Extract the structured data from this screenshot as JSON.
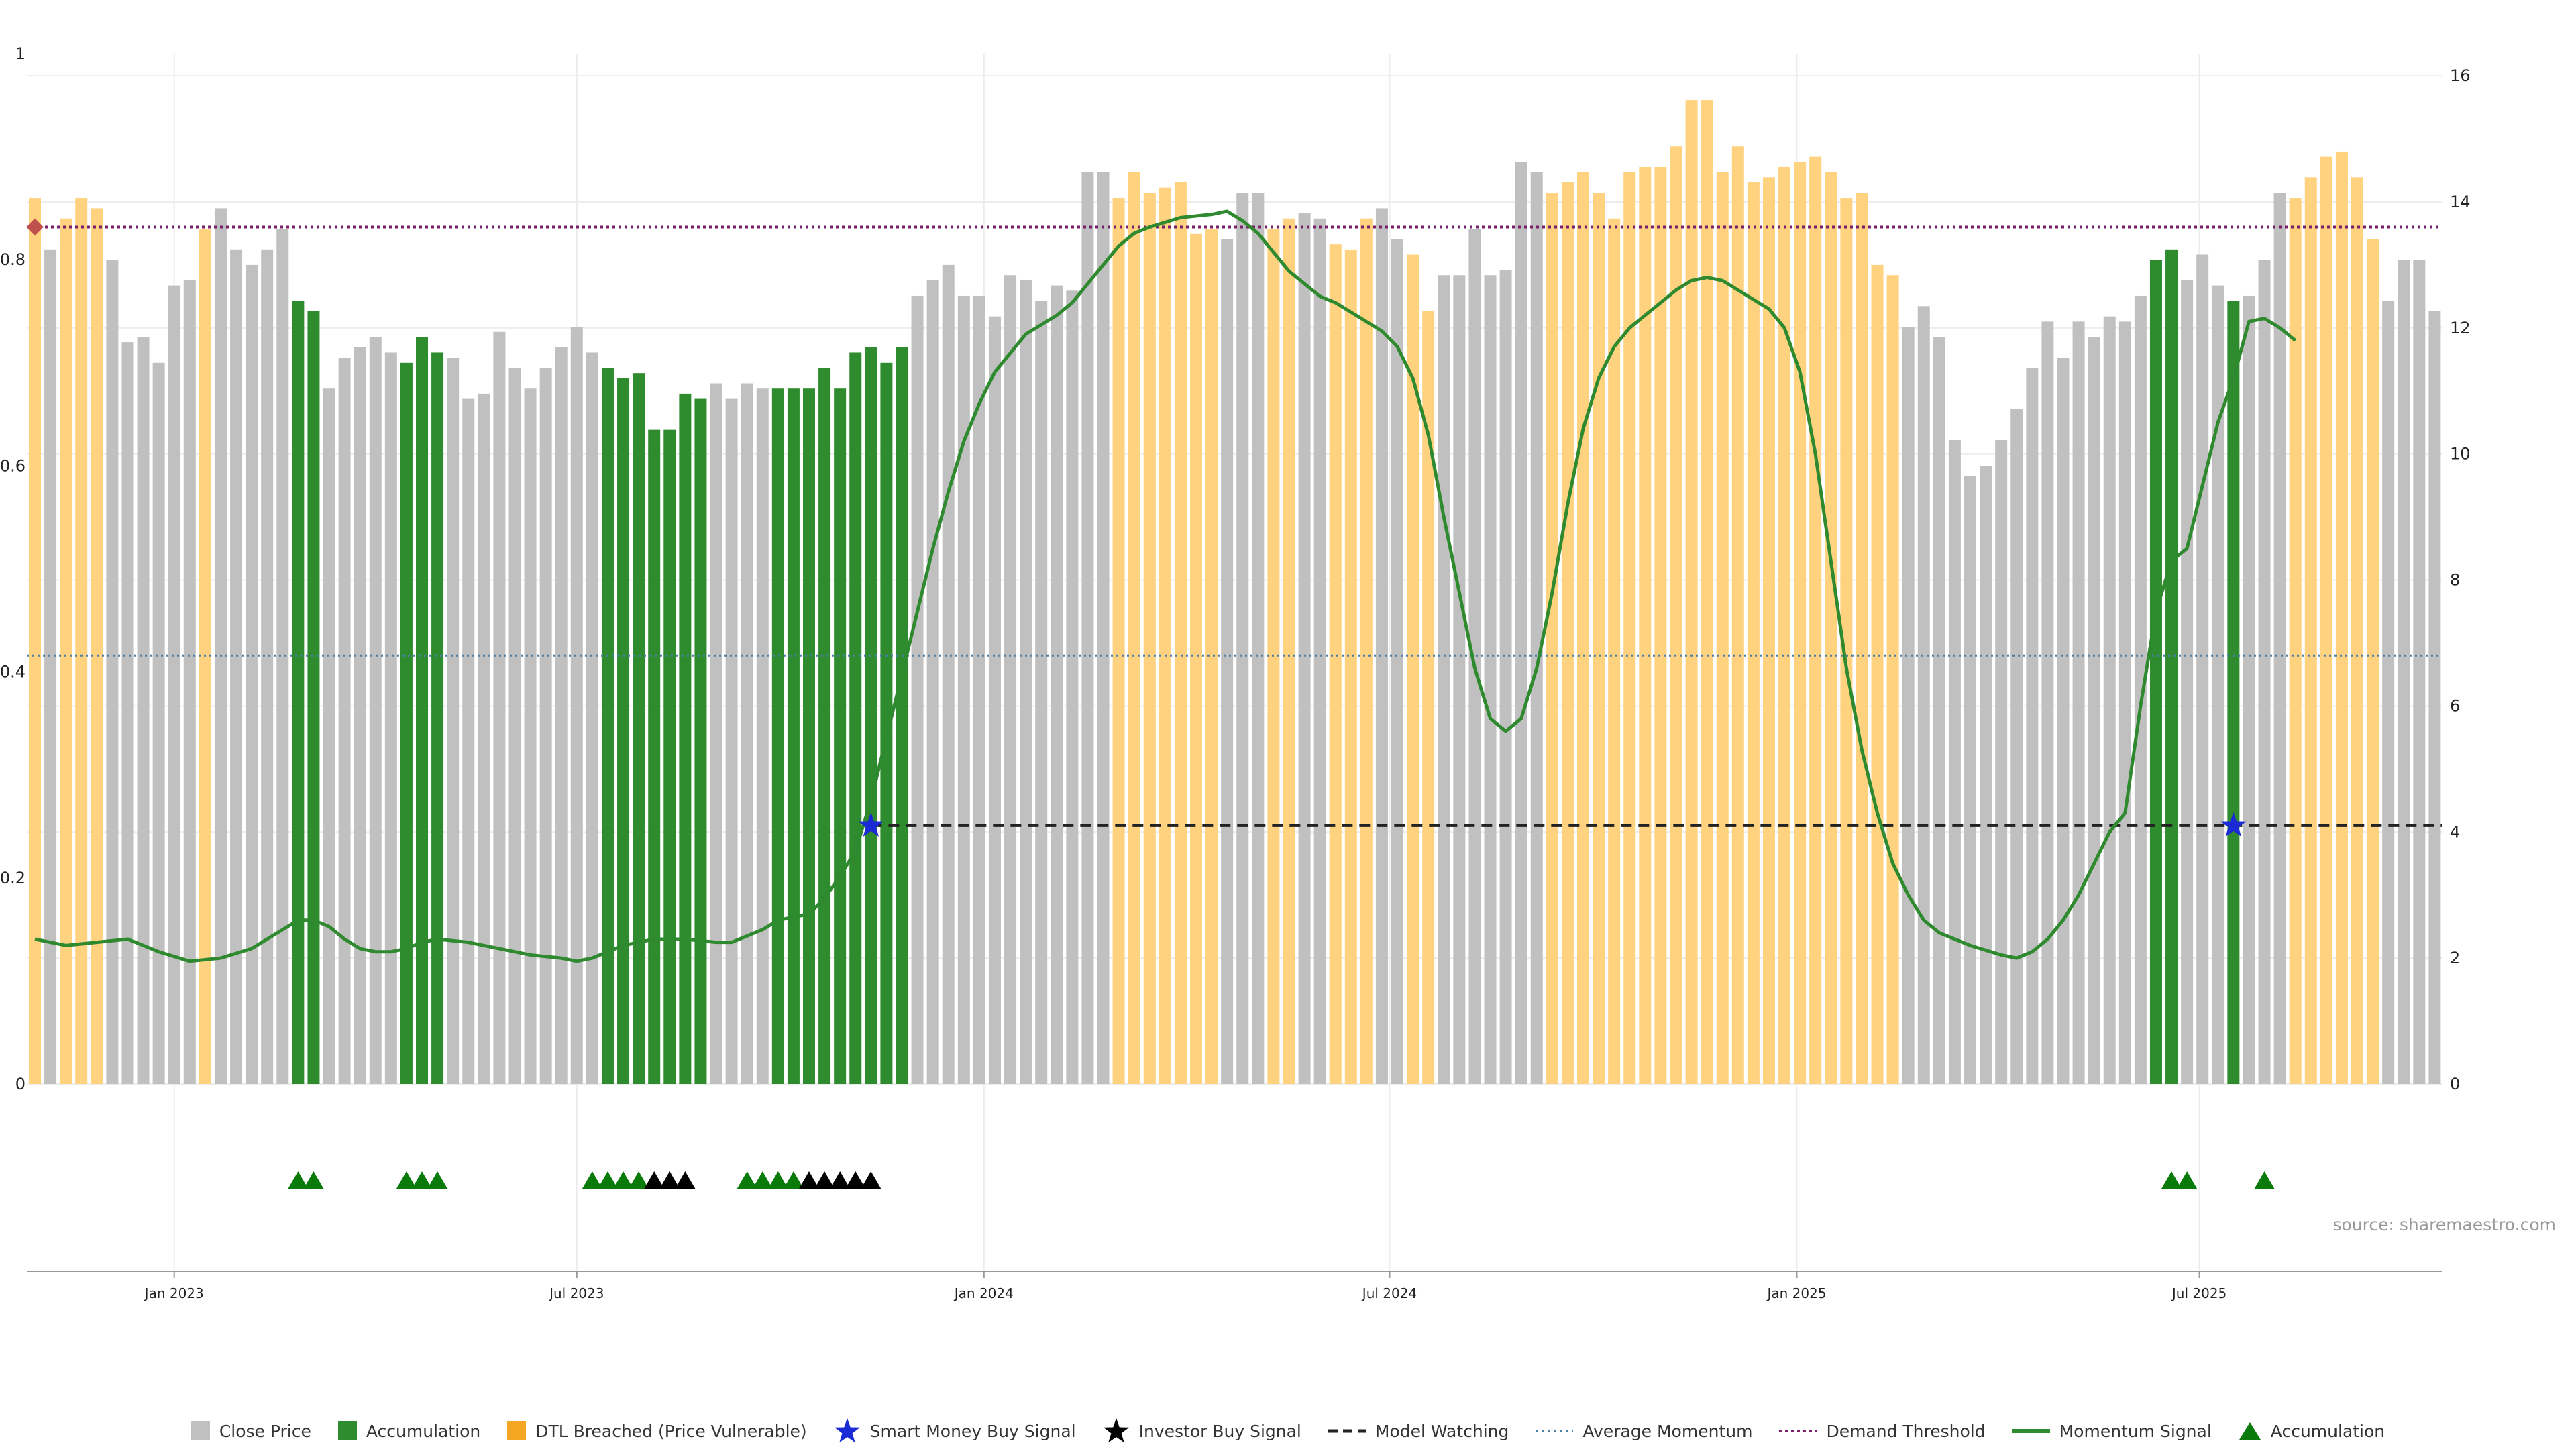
{
  "source_label": "source: sharemaestro.com",
  "colors": {
    "close": "#c0c0c0",
    "accumulation": "#2e8b2e",
    "dtl": "#ffd27f",
    "momentum": "#2f8a2f",
    "momentum_peak": "#0a7d0a",
    "avg_momentum": "#4a7fa8",
    "demand": "#7a1f6a",
    "model_watch": "#222222",
    "smart_money": "#1a2bd6",
    "investor": "#000000",
    "acc_marker": "#0a7a0a"
  },
  "legend": [
    {
      "label": "Close Price",
      "icon": "gray-square"
    },
    {
      "label": "Accumulation",
      "icon": "green-square"
    },
    {
      "label": "DTL Breached (Price Vulnerable)",
      "icon": "orange-square"
    },
    {
      "label": "Smart Money Buy Signal",
      "icon": "blue-star"
    },
    {
      "label": "Investor Buy Signal",
      "icon": "black-star"
    },
    {
      "label": "Model Watching",
      "icon": "dashed-line"
    },
    {
      "label": "Average Momentum",
      "icon": "dotted-blue-line"
    },
    {
      "label": "Demand Threshold",
      "icon": "dotted-purple-line"
    },
    {
      "label": "Momentum Signal",
      "icon": "green-line"
    },
    {
      "label": "Accumulation",
      "icon": "green-triangle"
    }
  ],
  "chart_data": {
    "type": "bar",
    "x_ticks": [
      "Jan 2023",
      "Jul 2023",
      "Jan 2024",
      "Jul 2024",
      "Jan 2025",
      "Jul 2025"
    ],
    "x_tick_positions": [
      9.0,
      35.0,
      61.3,
      87.5,
      113.8,
      139.8
    ],
    "y_left_ticks": [
      "0",
      "0.2",
      "0.4",
      "0.6",
      "0.8",
      "1"
    ],
    "y_left_range": [
      0,
      1
    ],
    "y_right_ticks": [
      "0",
      "2",
      "4",
      "6",
      "8",
      "10",
      "12",
      "14",
      "16"
    ],
    "y_right_range": [
      0,
      16
    ],
    "bars": {
      "close_values": [
        0.86,
        0.81,
        0.84,
        0.86,
        0.85,
        0.8,
        0.72,
        0.725,
        0.7,
        0.775,
        0.78,
        0.83,
        0.85,
        0.81,
        0.795,
        0.81,
        0.83,
        0.76,
        0.75,
        0.675,
        0.705,
        0.715,
        0.725,
        0.71,
        0.7,
        0.725,
        0.71,
        0.705,
        0.665,
        0.67,
        0.73,
        0.695,
        0.675,
        0.695,
        0.715,
        0.735,
        0.71,
        0.695,
        0.685,
        0.69,
        0.635,
        0.635,
        0.67,
        0.665,
        0.68,
        0.665,
        0.68,
        0.675,
        0.675,
        0.675,
        0.675,
        0.695,
        0.675,
        0.71,
        0.715,
        0.7,
        0.715,
        0.765,
        0.78,
        0.795,
        0.765,
        0.765,
        0.745,
        0.785,
        0.78,
        0.76,
        0.775,
        0.77,
        0.885,
        0.885,
        0.86,
        0.885,
        0.865,
        0.87,
        0.875,
        0.825,
        0.83,
        0.82,
        0.865,
        0.865,
        0.83,
        0.84,
        0.845,
        0.84,
        0.815,
        0.81,
        0.84,
        0.85,
        0.82,
        0.805,
        0.75,
        0.785,
        0.785,
        0.83,
        0.785,
        0.79,
        0.895,
        0.885,
        0.865,
        0.875,
        0.885,
        0.865,
        0.84,
        0.885,
        0.89,
        0.89,
        0.91,
        0.955,
        0.955,
        0.885,
        0.91,
        0.875,
        0.88,
        0.89,
        0.895,
        0.9,
        0.885,
        0.86,
        0.865,
        0.795,
        0.785,
        0.735,
        0.755,
        0.725,
        0.625,
        0.59,
        0.6,
        0.625,
        0.655,
        0.695,
        0.74,
        0.705,
        0.74,
        0.725,
        0.745,
        0.74,
        0.765,
        0.8,
        0.81,
        0.78,
        0.805,
        0.775,
        0.76,
        0.765,
        0.8,
        0.865,
        0.86,
        0.88,
        0.9,
        0.905,
        0.88,
        0.82,
        0.76,
        0.8,
        0.8,
        0.75
      ],
      "category_codes": "DGDDDGGGGGGDGGGGGAAGGGGGAAAGGGGGGGGGGAAAAAAAGGGGAAAAAAAAAGGGGGGGGGGGGGDDDDDDDGGGDDGGDDDGGDDGGGGGGGDDDDDDDDDDDDDDDDDDDDDDDGGGGGGGGGGGGGGGGAAGGGAGGGDDDDDDGGGGG"
    },
    "momentum_signal": [
      [
        0,
        2.3
      ],
      [
        2,
        2.2
      ],
      [
        4,
        2.25
      ],
      [
        6,
        2.3
      ],
      [
        8,
        2.1
      ],
      [
        10,
        1.95
      ],
      [
        12,
        2.0
      ],
      [
        14,
        2.15
      ],
      [
        16,
        2.45
      ],
      [
        17,
        2.6
      ],
      [
        18,
        2.6
      ],
      [
        19,
        2.5
      ],
      [
        20,
        2.3
      ],
      [
        21,
        2.15
      ],
      [
        22,
        2.1
      ],
      [
        23,
        2.1
      ],
      [
        24,
        2.15
      ],
      [
        25,
        2.25
      ],
      [
        26,
        2.3
      ],
      [
        28,
        2.25
      ],
      [
        30,
        2.15
      ],
      [
        32,
        2.05
      ],
      [
        34,
        2.0
      ],
      [
        35,
        1.95
      ],
      [
        36,
        2.0
      ],
      [
        38,
        2.2
      ],
      [
        40,
        2.3
      ],
      [
        42,
        2.3
      ],
      [
        44,
        2.25
      ],
      [
        45,
        2.25
      ],
      [
        47,
        2.45
      ],
      [
        48,
        2.6
      ],
      [
        50,
        2.7
      ],
      [
        51,
        2.95
      ],
      [
        52,
        3.3
      ],
      [
        53,
        3.7
      ],
      [
        54,
        4.5
      ],
      [
        55,
        5.5
      ],
      [
        56,
        6.5
      ],
      [
        57,
        7.5
      ],
      [
        58,
        8.5
      ],
      [
        59,
        9.4
      ],
      [
        60,
        10.2
      ],
      [
        61,
        10.8
      ],
      [
        62,
        11.3
      ],
      [
        63,
        11.6
      ],
      [
        64,
        11.9
      ],
      [
        66,
        12.2
      ],
      [
        67,
        12.4
      ],
      [
        68,
        12.7
      ],
      [
        69,
        13.0
      ],
      [
        70,
        13.3
      ],
      [
        71,
        13.5
      ],
      [
        72,
        13.6
      ],
      [
        74,
        13.75
      ],
      [
        76,
        13.8
      ],
      [
        77,
        13.85
      ],
      [
        78,
        13.7
      ],
      [
        79,
        13.5
      ],
      [
        80,
        13.2
      ],
      [
        81,
        12.9
      ],
      [
        82,
        12.7
      ],
      [
        83,
        12.5
      ],
      [
        84,
        12.4
      ],
      [
        85,
        12.25
      ],
      [
        86,
        12.1
      ],
      [
        87,
        11.95
      ],
      [
        88,
        11.7
      ],
      [
        89,
        11.2
      ],
      [
        90,
        10.3
      ],
      [
        91,
        9.0
      ],
      [
        92,
        7.8
      ],
      [
        93,
        6.6
      ],
      [
        94,
        5.8
      ],
      [
        95,
        5.6
      ],
      [
        96,
        5.8
      ],
      [
        97,
        6.6
      ],
      [
        98,
        7.8
      ],
      [
        99,
        9.2
      ],
      [
        100,
        10.4
      ],
      [
        101,
        11.2
      ],
      [
        102,
        11.7
      ],
      [
        103,
        12.0
      ],
      [
        104,
        12.2
      ],
      [
        105,
        12.4
      ],
      [
        106,
        12.6
      ],
      [
        107,
        12.75
      ],
      [
        108,
        12.8
      ],
      [
        109,
        12.75
      ],
      [
        110,
        12.6
      ],
      [
        111,
        12.45
      ],
      [
        112,
        12.3
      ],
      [
        113,
        12.0
      ],
      [
        114,
        11.3
      ],
      [
        115,
        10.0
      ],
      [
        116,
        8.3
      ],
      [
        117,
        6.6
      ],
      [
        118,
        5.3
      ],
      [
        119,
        4.3
      ],
      [
        120,
        3.5
      ],
      [
        121,
        3.0
      ],
      [
        122,
        2.6
      ],
      [
        123,
        2.4
      ],
      [
        125,
        2.2
      ],
      [
        127,
        2.05
      ],
      [
        128,
        2.0
      ],
      [
        129,
        2.1
      ],
      [
        130,
        2.3
      ],
      [
        131,
        2.6
      ],
      [
        132,
        3.0
      ],
      [
        133,
        3.5
      ],
      [
        134,
        4.0
      ],
      [
        135,
        4.3
      ],
      [
        136,
        6.0
      ],
      [
        137,
        7.5
      ],
      [
        138,
        8.3
      ],
      [
        139,
        8.5
      ],
      [
        140,
        9.5
      ],
      [
        141,
        10.5
      ],
      [
        142,
        11.2
      ],
      [
        143,
        12.1
      ],
      [
        144,
        12.15
      ],
      [
        145,
        12.0
      ],
      [
        146,
        11.8
      ]
    ],
    "average_momentum": 6.8,
    "demand_threshold": 13.6,
    "model_watching": {
      "y": 4.1,
      "x_start": 54,
      "x_end": 156
    },
    "smart_money_buy_signals": [
      [
        54,
        4.1
      ],
      [
        142,
        4.1
      ]
    ],
    "demand_marker": {
      "x": 0,
      "y": 13.6
    },
    "accumulation_markers": [
      17,
      18,
      24,
      25,
      26,
      36,
      37,
      38,
      39,
      46,
      47,
      48,
      49,
      138,
      139,
      144
    ],
    "investor_markers": [
      40,
      41,
      42,
      50,
      51,
      52,
      53,
      54
    ]
  }
}
